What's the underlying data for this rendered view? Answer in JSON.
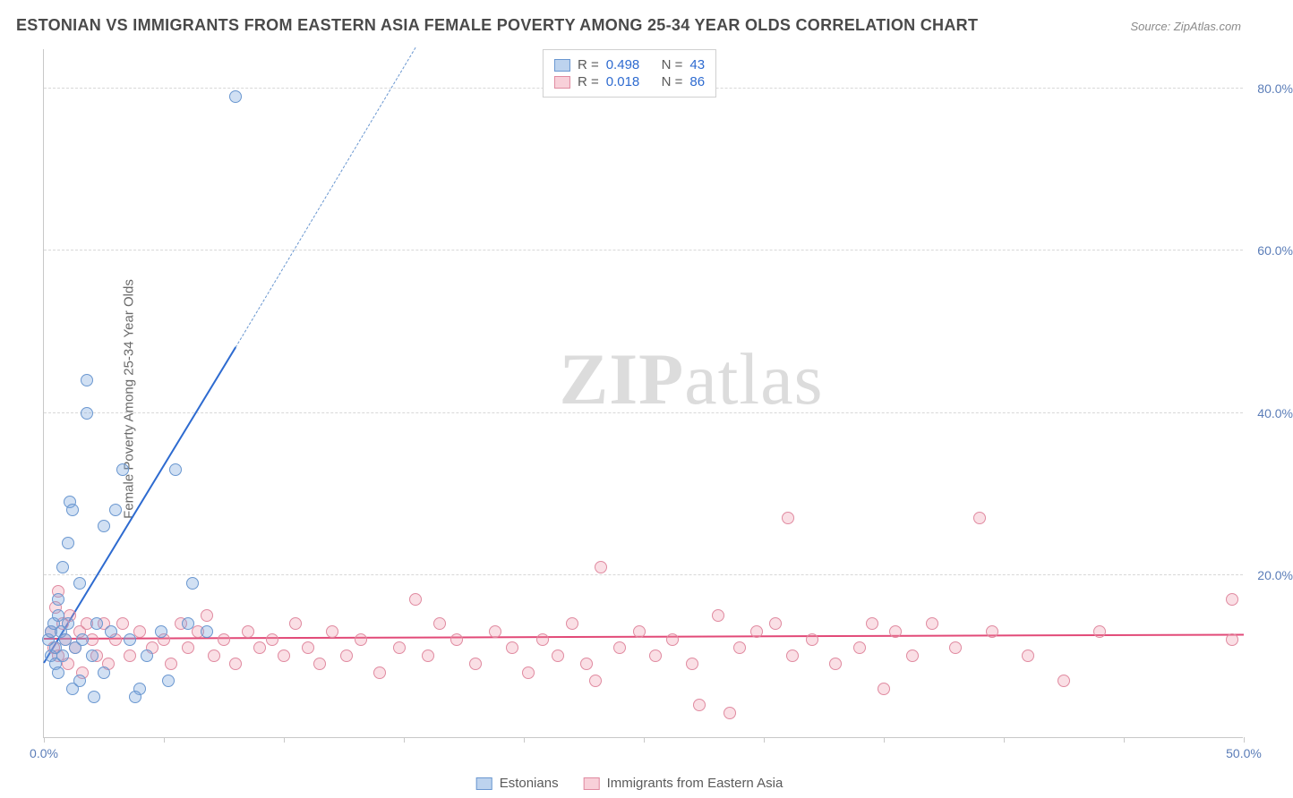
{
  "title": "ESTONIAN VS IMMIGRANTS FROM EASTERN ASIA FEMALE POVERTY AMONG 25-34 YEAR OLDS CORRELATION CHART",
  "source": "Source: ZipAtlas.com",
  "y_axis_label": "Female Poverty Among 25-34 Year Olds",
  "watermark_bold": "ZIP",
  "watermark_light": "atlas",
  "chart": {
    "type": "scatter",
    "background_color": "#ffffff",
    "grid_color": "#d8d8d8",
    "axis_color": "#c8c8c8",
    "xlim": [
      0,
      50
    ],
    "ylim": [
      0,
      85
    ],
    "x_ticks": [
      0,
      5,
      10,
      15,
      20,
      25,
      30,
      35,
      40,
      45,
      50
    ],
    "x_tick_labels": {
      "0": "0.0%",
      "50": "50.0%"
    },
    "y_ticks": [
      20,
      40,
      60,
      80
    ],
    "y_tick_labels": [
      "20.0%",
      "40.0%",
      "60.0%",
      "80.0%"
    ],
    "marker_radius": 7,
    "series": [
      {
        "name": "Estonians",
        "color_fill": "rgba(123,167,222,0.35)",
        "color_border": "#6a97d0",
        "trend_color": "#2e6bd0",
        "R": "0.498",
        "N": "43",
        "trend_solid": {
          "x1": 0,
          "y1": 9,
          "x2": 8,
          "y2": 48
        },
        "trend_dashed": {
          "x1": 8,
          "y1": 48,
          "x2": 15.5,
          "y2": 85
        },
        "points": [
          [
            0.2,
            12
          ],
          [
            0.3,
            10
          ],
          [
            0.3,
            13
          ],
          [
            0.4,
            14
          ],
          [
            0.5,
            9
          ],
          [
            0.5,
            11
          ],
          [
            0.6,
            8
          ],
          [
            0.6,
            15
          ],
          [
            0.6,
            17
          ],
          [
            0.7,
            13
          ],
          [
            0.8,
            10
          ],
          [
            0.8,
            21
          ],
          [
            0.9,
            12
          ],
          [
            1.0,
            24
          ],
          [
            1.0,
            14
          ],
          [
            1.1,
            29
          ],
          [
            1.2,
            28
          ],
          [
            1.2,
            6
          ],
          [
            1.3,
            11
          ],
          [
            1.5,
            19
          ],
          [
            1.5,
            7
          ],
          [
            1.6,
            12
          ],
          [
            1.8,
            44
          ],
          [
            1.8,
            40
          ],
          [
            2.0,
            10
          ],
          [
            2.1,
            5
          ],
          [
            2.2,
            14
          ],
          [
            2.5,
            8
          ],
          [
            2.5,
            26
          ],
          [
            2.8,
            13
          ],
          [
            3.0,
            28
          ],
          [
            3.3,
            33
          ],
          [
            3.6,
            12
          ],
          [
            4.0,
            6
          ],
          [
            4.3,
            10
          ],
          [
            4.9,
            13
          ],
          [
            5.2,
            7
          ],
          [
            5.5,
            33
          ],
          [
            6.0,
            14
          ],
          [
            6.2,
            19
          ],
          [
            6.8,
            13
          ],
          [
            8.0,
            79
          ],
          [
            3.8,
            5
          ]
        ]
      },
      {
        "name": "Immigrants from Eastern Asia",
        "color_fill": "rgba(240,150,170,0.30)",
        "color_border": "#e08aa0",
        "trend_color": "#e24a78",
        "R": "0.018",
        "N": "86",
        "trend_solid": {
          "x1": 0,
          "y1": 12,
          "x2": 50,
          "y2": 12.5
        },
        "points": [
          [
            0.3,
            13
          ],
          [
            0.4,
            11
          ],
          [
            0.5,
            16
          ],
          [
            0.6,
            10
          ],
          [
            0.6,
            18
          ],
          [
            0.8,
            14
          ],
          [
            0.9,
            12
          ],
          [
            1.0,
            9
          ],
          [
            1.1,
            15
          ],
          [
            1.3,
            11
          ],
          [
            1.5,
            13
          ],
          [
            1.6,
            8
          ],
          [
            1.8,
            14
          ],
          [
            2.0,
            12
          ],
          [
            2.2,
            10
          ],
          [
            2.5,
            14
          ],
          [
            2.7,
            9
          ],
          [
            3.0,
            12
          ],
          [
            3.3,
            14
          ],
          [
            3.6,
            10
          ],
          [
            4.0,
            13
          ],
          [
            4.5,
            11
          ],
          [
            5.0,
            12
          ],
          [
            5.3,
            9
          ],
          [
            5.7,
            14
          ],
          [
            6.0,
            11
          ],
          [
            6.4,
            13
          ],
          [
            6.8,
            15
          ],
          [
            7.1,
            10
          ],
          [
            7.5,
            12
          ],
          [
            8.0,
            9
          ],
          [
            8.5,
            13
          ],
          [
            9.0,
            11
          ],
          [
            9.5,
            12
          ],
          [
            10.0,
            10
          ],
          [
            10.5,
            14
          ],
          [
            11.0,
            11
          ],
          [
            11.5,
            9
          ],
          [
            12.0,
            13
          ],
          [
            12.6,
            10
          ],
          [
            13.2,
            12
          ],
          [
            14.0,
            8
          ],
          [
            14.8,
            11
          ],
          [
            15.5,
            17
          ],
          [
            16.0,
            10
          ],
          [
            16.5,
            14
          ],
          [
            17.2,
            12
          ],
          [
            18.0,
            9
          ],
          [
            18.8,
            13
          ],
          [
            19.5,
            11
          ],
          [
            20.2,
            8
          ],
          [
            20.8,
            12
          ],
          [
            21.4,
            10
          ],
          [
            22.0,
            14
          ],
          [
            22.6,
            9
          ],
          [
            23.0,
            7
          ],
          [
            23.2,
            21
          ],
          [
            24.0,
            11
          ],
          [
            24.8,
            13
          ],
          [
            25.5,
            10
          ],
          [
            26.2,
            12
          ],
          [
            27.0,
            9
          ],
          [
            27.3,
            4
          ],
          [
            28.1,
            15
          ],
          [
            28.6,
            3
          ],
          [
            29.0,
            11
          ],
          [
            29.7,
            13
          ],
          [
            30.5,
            14
          ],
          [
            31.0,
            27
          ],
          [
            31.2,
            10
          ],
          [
            32.0,
            12
          ],
          [
            33.0,
            9
          ],
          [
            34.0,
            11
          ],
          [
            34.5,
            14
          ],
          [
            35.0,
            6
          ],
          [
            35.5,
            13
          ],
          [
            36.2,
            10
          ],
          [
            37.0,
            14
          ],
          [
            38.0,
            11
          ],
          [
            39.0,
            27
          ],
          [
            39.5,
            13
          ],
          [
            41.0,
            10
          ],
          [
            42.5,
            7
          ],
          [
            44.0,
            13
          ],
          [
            49.5,
            17
          ],
          [
            49.5,
            12
          ]
        ]
      }
    ]
  },
  "legend_top": {
    "rows": [
      {
        "swatch": "blue",
        "r_label": "R =",
        "r_val": "0.498",
        "n_label": "N =",
        "n_val": "43"
      },
      {
        "swatch": "pink",
        "r_label": "R =",
        "r_val": "0.018",
        "n_label": "N =",
        "n_val": "86"
      }
    ]
  },
  "legend_bottom": {
    "items": [
      {
        "swatch": "blue",
        "label": "Estonians"
      },
      {
        "swatch": "pink",
        "label": "Immigrants from Eastern Asia"
      }
    ]
  },
  "colors": {
    "title_text": "#4a4a4a",
    "source_text": "#8a8a8a",
    "tick_text": "#5b7db8",
    "watermark": "#dcdcdc"
  }
}
